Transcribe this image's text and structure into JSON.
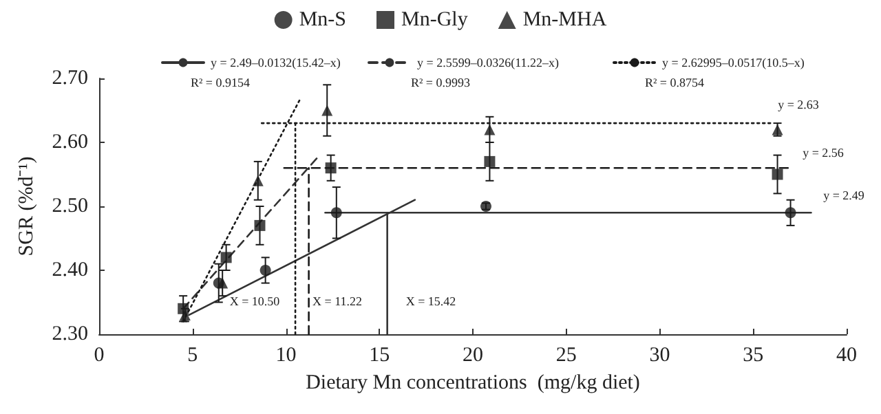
{
  "chart_data": {
    "type": "scatter",
    "xlabel": "Dietary Mn concentrations  (mg/kg diet)",
    "ylabel": "SGR (%d⁻¹)",
    "xlim": [
      0,
      40
    ],
    "xticks": [
      0,
      5,
      10,
      15,
      20,
      25,
      30,
      35,
      40
    ],
    "ylim": [
      2.3,
      2.7
    ],
    "yticks": [
      {
        "value": 2.3,
        "label": "2.30"
      },
      {
        "value": 2.4,
        "label": "2.40"
      },
      {
        "value": 2.5,
        "label": "2.50"
      },
      {
        "value": 2.6,
        "label": "2.60"
      },
      {
        "value": 2.7,
        "label": "2.70"
      }
    ],
    "grid": false,
    "legend": "top",
    "series": [
      {
        "name": "Mn-S",
        "marker": "circle",
        "color": "#1a1a1a",
        "x": [
          6.4,
          8.9,
          12.7,
          20.7,
          37.0
        ],
        "values": [
          2.38,
          2.4,
          2.49,
          2.5,
          2.49
        ],
        "errors": [
          0.03,
          0.02,
          0.04,
          0.005,
          0.02
        ]
      },
      {
        "name": "Mn-Gly",
        "marker": "square",
        "color": "#1a1a1a",
        "x": [
          4.5,
          6.8,
          8.6,
          12.4,
          20.9,
          36.3
        ],
        "values": [
          2.34,
          2.42,
          2.47,
          2.56,
          2.57,
          2.55
        ],
        "errors": [
          0.02,
          0.02,
          0.03,
          0.02,
          0.03,
          0.03
        ]
      },
      {
        "name": "Mn-MHA",
        "marker": "triangle",
        "color": "#1a1a1a",
        "x": [
          4.6,
          6.6,
          8.5,
          12.2,
          20.9,
          36.3
        ],
        "values": [
          2.33,
          2.38,
          2.54,
          2.65,
          2.62,
          2.62
        ],
        "errors": [
          0.01,
          0.02,
          0.03,
          0.04,
          0.02,
          0.01
        ]
      },
      {
        "name": "y = 2.49–0.0132(15.42–x)",
        "type": "line",
        "line_style": "solid",
        "color": "#333333",
        "x": [
          4.8,
          16.9
        ],
        "values": [
          2.33,
          2.51
        ]
      },
      {
        "name": "y = 2.5599–0.0326(11.22–x)",
        "type": "line",
        "line_style": "dashed",
        "color": "#333333",
        "x": [
          4.5,
          11.8
        ],
        "values": [
          2.34,
          2.58
        ]
      },
      {
        "name": "y = 2.62995–0.0517(10.5–x)",
        "type": "line",
        "line_style": "dotted",
        "color": "#1a1a1a",
        "x": [
          4.5,
          10.8
        ],
        "values": [
          2.32,
          2.67
        ]
      },
      {
        "type": "line",
        "line_style": "solid",
        "color": "#333333",
        "x": [
          12.1,
          38.1
        ],
        "values": [
          2.49,
          2.49
        ]
      },
      {
        "type": "line",
        "line_style": "dashed",
        "color": "#1a1a1a",
        "x": [
          9.9,
          37.1
        ],
        "values": [
          2.56,
          2.56
        ]
      },
      {
        "type": "line",
        "line_style": "dotted",
        "color": "#1a1a1a",
        "x": [
          8.7,
          36.0
        ],
        "values": [
          2.63,
          2.63
        ]
      },
      {
        "type": "line",
        "line_style": "dotted",
        "color": "#1a1a1a",
        "x": [
          10.5,
          10.5
        ],
        "values": [
          2.3,
          2.63
        ]
      },
      {
        "type": "line",
        "line_style": "dashed",
        "color": "#1a1a1a",
        "x": [
          11.22,
          11.22
        ],
        "values": [
          2.3,
          2.56
        ]
      },
      {
        "type": "line",
        "line_style": "solid",
        "color": "#333333",
        "x": [
          15.42,
          15.42
        ],
        "values": [
          2.3,
          2.49
        ]
      }
    ],
    "annotations": [
      "R² = 0.9154",
      "R² = 0.9993",
      "R² = 0.8754",
      "X = 10.50",
      "X = 11.22",
      "X = 15.42",
      "y = 2.63",
      "y = 2.56",
      "y = 2.49"
    ]
  }
}
